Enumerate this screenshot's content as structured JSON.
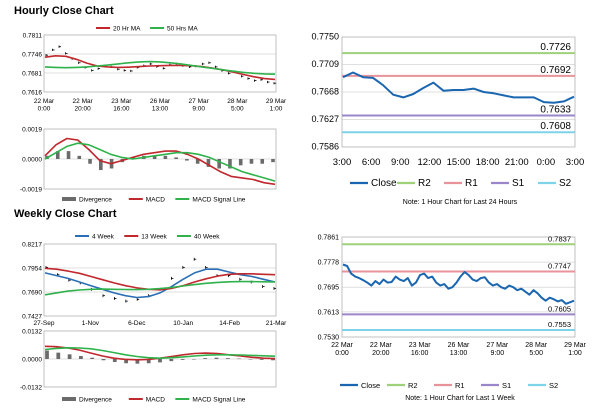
{
  "sections": {
    "hourly_title": "Hourly Close Chart",
    "weekly_title": "Weekly Close Chart"
  },
  "colors": {
    "ma_red": "#c0282d",
    "ma_green": "#2fb24b",
    "blue": "#2a6fb5",
    "close_line": "#1a66b0",
    "r2": "#9fd07a",
    "r1": "#e8929a",
    "s1": "#9a86c8",
    "s2": "#7fd3e8",
    "grid": "#bfbfbf",
    "divergence": "#6b6b6b",
    "price": "#000000"
  },
  "chart_data": [
    {
      "id": "hourly_ma",
      "type": "line",
      "legend": [
        "20 Hr MA",
        "50 Hrs MA"
      ],
      "y_ticks": [
        "0.7811",
        "0.7746",
        "0.7681",
        "0.7616"
      ],
      "ylim": [
        0.7616,
        0.7811
      ],
      "x_ticks": [
        [
          "22 Mar",
          "0:00"
        ],
        [
          "22 Mar",
          "20:00"
        ],
        [
          "23 Mar",
          "16:00"
        ],
        [
          "26 Mar",
          "13:00"
        ],
        [
          "27 Mar",
          "9:00"
        ],
        [
          "28 Mar",
          "5:00"
        ],
        [
          "29 Mar",
          "1:00"
        ]
      ],
      "price": [
        0.7742,
        0.776,
        0.7771,
        0.7748,
        0.773,
        0.7716,
        0.77,
        0.769,
        0.7696,
        0.7705,
        0.7702,
        0.7694,
        0.769,
        0.7688,
        0.77,
        0.7706,
        0.7712,
        0.7703,
        0.7697,
        0.7709,
        0.7713,
        0.7706,
        0.7702,
        0.7704,
        0.7712,
        0.7716,
        0.7702,
        0.7689,
        0.768,
        0.7686,
        0.767,
        0.7662,
        0.7655,
        0.7658,
        0.765,
        0.7646
      ],
      "series": [
        {
          "name": "20 Hr MA",
          "values": [
            0.7735,
            0.774,
            0.7738,
            0.7728,
            0.7715,
            0.7705,
            0.7702,
            0.77,
            0.7701,
            0.7703,
            0.7705,
            0.7706,
            0.7707,
            0.7707,
            0.7706,
            0.7703,
            0.7698,
            0.7692,
            0.7684,
            0.7676,
            0.7668,
            0.7662,
            0.7659
          ]
        },
        {
          "name": "50 Hrs MA",
          "values": [
            0.7702,
            0.77,
            0.7699,
            0.77,
            0.7702,
            0.7705,
            0.7708,
            0.7712,
            0.7716,
            0.7719,
            0.772,
            0.7719,
            0.7716,
            0.7712,
            0.7707,
            0.7702,
            0.7697,
            0.7692,
            0.7687,
            0.7683,
            0.768,
            0.7678,
            0.7677
          ]
        }
      ]
    },
    {
      "id": "hourly_macd",
      "type": "line",
      "y_ticks": [
        "0.0019",
        "0.0000",
        "-0.0019"
      ],
      "ylim": [
        -0.0019,
        0.0019
      ],
      "legend": [
        "Divergence",
        "MACD",
        "MACD Signal Line"
      ],
      "series": [
        {
          "name": "MACD",
          "values": [
            0.0002,
            0.0009,
            0.0013,
            0.0012,
            0.0006,
            -0.0001,
            -0.0003,
            -0.0001,
            0.0001,
            0.0003,
            0.0004,
            0.0005,
            0.0005,
            0.0003,
            0.0,
            -0.0004,
            -0.0008,
            -0.0011,
            -0.0012,
            -0.0013,
            -0.0015,
            -0.0016
          ]
        },
        {
          "name": "MACD Signal Line",
          "values": [
            0.0,
            0.0004,
            0.0008,
            0.001,
            0.0009,
            0.0006,
            0.0003,
            0.0001,
            0.0,
            0.0001,
            0.0002,
            0.0003,
            0.0004,
            0.0004,
            0.0003,
            0.0001,
            -0.0002,
            -0.0005,
            -0.0008,
            -0.001,
            -0.0012,
            -0.0014
          ]
        },
        {
          "name": "Divergence",
          "values": [
            0.0002,
            0.0005,
            0.0005,
            0.0002,
            -0.0003,
            -0.0007,
            -0.0006,
            -0.0002,
            0.0001,
            0.0002,
            0.0002,
            0.0002,
            0.0001,
            -0.0001,
            -0.0003,
            -0.0005,
            -0.0006,
            -0.0006,
            -0.0004,
            -0.0003,
            -0.0003,
            -0.0002
          ]
        }
      ]
    },
    {
      "id": "hourly_close",
      "type": "line",
      "y_ticks": [
        "0.7750",
        "0.7709",
        "0.7668",
        "0.7627",
        "0.7586"
      ],
      "ylim": [
        0.7586,
        0.775
      ],
      "x_ticks": [
        "3:00",
        "6:00",
        "9:00",
        "12:00",
        "15:00",
        "18:00",
        "21:00",
        "0:00",
        "3:00"
      ],
      "levels": [
        {
          "name": "R2",
          "value": 0.7726,
          "label": "0.7726"
        },
        {
          "name": "R1",
          "value": 0.7692,
          "label": "0.7692"
        },
        {
          "name": "S1",
          "value": 0.7633,
          "label": "0.7633"
        },
        {
          "name": "S2",
          "value": 0.7608,
          "label": "0.7608"
        }
      ],
      "series": [
        {
          "name": "Close",
          "values": [
            0.769,
            0.7697,
            0.769,
            0.7689,
            0.7678,
            0.7664,
            0.766,
            0.7665,
            0.7674,
            0.7682,
            0.767,
            0.7671,
            0.7671,
            0.7673,
            0.7668,
            0.7666,
            0.7663,
            0.766,
            0.766,
            0.766,
            0.7653,
            0.7652,
            0.7654,
            0.7661
          ]
        }
      ],
      "legend": [
        "Close",
        "R2",
        "R1",
        "S1",
        "S2"
      ],
      "note": "Note: 1 Hour Chart for Last 24 Hours"
    },
    {
      "id": "weekly_ma",
      "type": "line",
      "legend": [
        "4 Week",
        "13 Week",
        "40 Week"
      ],
      "y_ticks": [
        "0.8217",
        "0.7954",
        "0.7690",
        "0.7427"
      ],
      "ylim": [
        0.7427,
        0.8217
      ],
      "x_ticks": [
        "27-Sep",
        "1-Nov",
        "6-Dec",
        "10-Jan",
        "14-Feb",
        "21-Mar"
      ],
      "price": [
        0.796,
        0.788,
        0.782,
        0.779,
        0.772,
        0.765,
        0.762,
        0.759,
        0.761,
        0.765,
        0.772,
        0.784,
        0.796,
        0.805,
        0.796,
        0.787,
        0.787,
        0.783,
        0.78,
        0.775,
        0.773
      ],
      "series": [
        {
          "name": "4 Week",
          "values": [
            0.79,
            0.787,
            0.784,
            0.78,
            0.776,
            0.772,
            0.768,
            0.765,
            0.763,
            0.764,
            0.768,
            0.775,
            0.783,
            0.79,
            0.794,
            0.794,
            0.791,
            0.788,
            0.786,
            0.783,
            0.78
          ]
        },
        {
          "name": "13 Week",
          "values": [
            0.795,
            0.794,
            0.792,
            0.7895,
            0.786,
            0.7825,
            0.779,
            0.776,
            0.7735,
            0.772,
            0.7715,
            0.773,
            0.776,
            0.78,
            0.7835,
            0.7865,
            0.7885,
            0.789,
            0.789,
            0.7885,
            0.788
          ]
        },
        {
          "name": "40 Week",
          "values": [
            0.766,
            0.768,
            0.77,
            0.7712,
            0.772,
            0.7722,
            0.772,
            0.7718,
            0.7717,
            0.772,
            0.7728,
            0.774,
            0.7756,
            0.7772,
            0.7786,
            0.7796,
            0.7802,
            0.7804,
            0.7804,
            0.7802,
            0.78
          ]
        }
      ]
    },
    {
      "id": "weekly_macd",
      "type": "line",
      "y_ticks": [
        "0.0132",
        "0.0000",
        "-0.0132"
      ],
      "ylim": [
        -0.0132,
        0.0132
      ],
      "legend": [
        "Divergence",
        "MACD",
        "MACD Signal Line"
      ],
      "series": [
        {
          "name": "MACD",
          "values": [
            0.006,
            0.0058,
            0.0052,
            0.0042,
            0.0028,
            0.0014,
            0.0004,
            -0.0002,
            -0.0004,
            -0.0002,
            0.0004,
            0.0012,
            0.002,
            0.0026,
            0.0028,
            0.0026,
            0.002,
            0.0014,
            0.0008,
            0.0004,
            0.0002
          ]
        },
        {
          "name": "MACD Signal Line",
          "values": [
            0.0045,
            0.005,
            0.0053,
            0.0052,
            0.0048,
            0.004,
            0.003,
            0.002,
            0.0012,
            0.0006,
            0.0004,
            0.0006,
            0.001,
            0.0014,
            0.0018,
            0.002,
            0.002,
            0.0019,
            0.0017,
            0.0015,
            0.0013
          ]
        },
        {
          "name": "Divergence",
          "values": [
            0.004,
            0.003,
            0.0022,
            0.0014,
            0.0006,
            -0.0006,
            -0.0014,
            -0.002,
            -0.0022,
            -0.002,
            -0.0016,
            -0.001,
            -0.0004,
            0.0,
            0.0004,
            0.0006,
            0.0004,
            0.0002,
            -0.0002,
            -0.0004,
            -0.0006
          ]
        }
      ]
    },
    {
      "id": "weekly_close",
      "type": "line",
      "y_ticks": [
        "0.7861",
        "0.7778",
        "0.7695",
        "0.7613",
        "0.7530"
      ],
      "ylim": [
        0.753,
        0.7861
      ],
      "x_ticks": [
        [
          "22 Mar",
          "0:00"
        ],
        [
          "22 Mar",
          "20:00"
        ],
        [
          "23 Mar",
          "16:00"
        ],
        [
          "26 Mar",
          "13:00"
        ],
        [
          "27 Mar",
          "9:00"
        ],
        [
          "28 Mar",
          "5:00"
        ],
        [
          "29 Mar",
          "1:00"
        ]
      ],
      "levels": [
        {
          "name": "R2",
          "value": 0.7837,
          "label": "0.7837"
        },
        {
          "name": "R1",
          "value": 0.7747,
          "label": "0.7747"
        },
        {
          "name": "S1",
          "value": 0.7605,
          "label": "0.7605"
        },
        {
          "name": "S2",
          "value": 0.7553,
          "label": "0.7553"
        }
      ],
      "series": [
        {
          "name": "Close",
          "values": [
            0.777,
            0.7765,
            0.774,
            0.773,
            0.7725,
            0.7718,
            0.771,
            0.77,
            0.7715,
            0.7705,
            0.772,
            0.771,
            0.7712,
            0.773,
            0.772,
            0.7715,
            0.7725,
            0.77,
            0.771,
            0.7735,
            0.774,
            0.7725,
            0.773,
            0.771,
            0.77,
            0.7705,
            0.769,
            0.7695,
            0.771,
            0.773,
            0.7745,
            0.7735,
            0.772,
            0.7715,
            0.7725,
            0.7728,
            0.771,
            0.77,
            0.7705,
            0.7695,
            0.769,
            0.77,
            0.7695,
            0.7685,
            0.769,
            0.768,
            0.767,
            0.7685,
            0.7675,
            0.766,
            0.765,
            0.766,
            0.7655,
            0.7648,
            0.7652,
            0.764,
            0.7645,
            0.765
          ]
        }
      ],
      "legend": [
        "Close",
        "R2",
        "R1",
        "S1",
        "S2"
      ],
      "note": "Note: 1 Hour Chart for Last 1 Week"
    }
  ]
}
